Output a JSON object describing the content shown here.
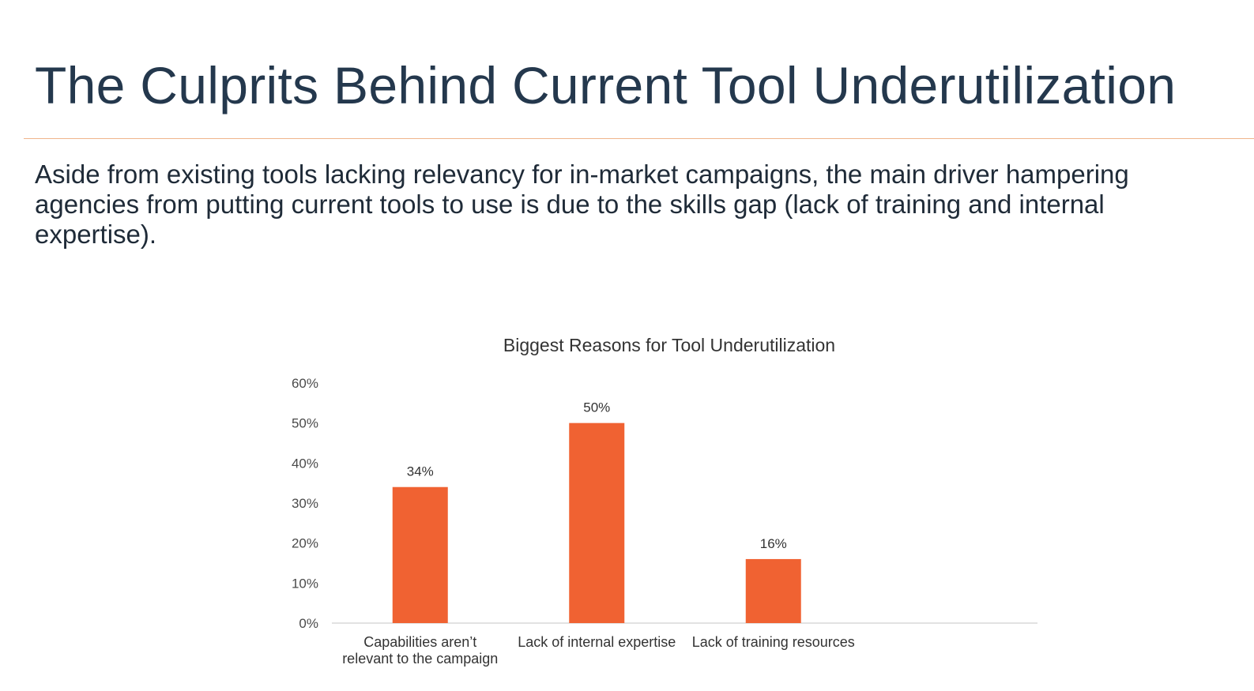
{
  "slide": {
    "title": "The Culprits Behind Current Tool Underutilization",
    "body": "Aside from existing tools lacking relevancy for in-market campaigns, the main driver hampering agencies from putting current tools to use is due to the skills gap (lack of training and internal expertise)."
  },
  "chart_data": {
    "type": "bar",
    "title": "Biggest Reasons for Tool Underutilization",
    "categories": [
      [
        "Capabilities aren’t",
        "relevant to the campaign"
      ],
      [
        "Lack of internal expertise"
      ],
      [
        "Lack of training resources"
      ]
    ],
    "values": [
      34,
      50,
      16
    ],
    "data_labels": [
      "34%",
      "50%",
      "16%"
    ],
    "yticks": [
      0,
      10,
      20,
      30,
      40,
      50,
      60
    ],
    "ytick_labels": [
      "0%",
      "10%",
      "20%",
      "30%",
      "40%",
      "50%",
      "60%"
    ],
    "ylim": [
      0,
      60
    ],
    "grid": false,
    "bar_color": "#f06232",
    "xlabel": "",
    "ylabel": ""
  }
}
